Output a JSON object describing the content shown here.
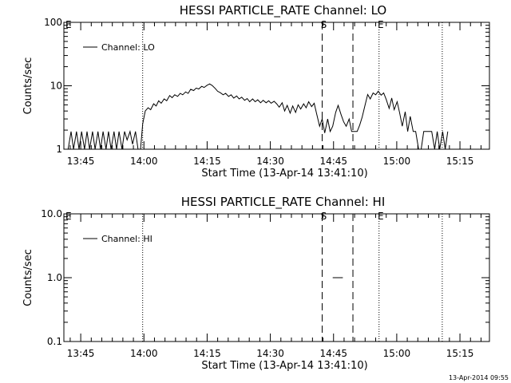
{
  "chart_data": [
    {
      "type": "line",
      "title": "HESSI PARTICLE_RATE Channel: LO",
      "xlabel": "Start Time (13-Apr-14 13:41:10)",
      "ylabel": "Counts/sec",
      "yscale": "log",
      "ylim": [
        1,
        100
      ],
      "xlim_minutes": [
        0,
        101
      ],
      "x_tick_minutes": [
        4,
        19,
        34,
        49,
        64,
        79,
        94
      ],
      "x_tick_labels": [
        "13:45",
        "14:00",
        "14:15",
        "14:30",
        "14:45",
        "15:00",
        "15:15"
      ],
      "y_ticks": [
        1,
        10,
        100
      ],
      "y_tick_labels": [
        "1",
        "10",
        "100"
      ],
      "legend": [
        "Channel: LO"
      ],
      "markers": [
        {
          "label": "E",
          "minute": 0,
          "style": "none"
        },
        {
          "label": "",
          "minute": 18.7,
          "style": "dotted"
        },
        {
          "label": "S",
          "minute": 61.3,
          "style": "dashed"
        },
        {
          "label": "",
          "minute": 68.6,
          "style": "dashed"
        },
        {
          "label": "E",
          "minute": 74.8,
          "style": "dotted"
        },
        {
          "label": "",
          "minute": 89.8,
          "style": "dotted"
        }
      ],
      "series": [
        {
          "name": "Channel: LO",
          "points": [
            [
              1,
              1
            ],
            [
              1.7,
              1.9
            ],
            [
              2.3,
              1
            ],
            [
              3,
              1.9
            ],
            [
              3.6,
              1
            ],
            [
              4.2,
              1.9
            ],
            [
              4.9,
              1
            ],
            [
              5.5,
              1.9
            ],
            [
              6.1,
              1
            ],
            [
              6.8,
              1.9
            ],
            [
              7.4,
              1
            ],
            [
              8.1,
              1.9
            ],
            [
              8.7,
              1
            ],
            [
              9.3,
              1.9
            ],
            [
              10,
              1
            ],
            [
              10.6,
              1.9
            ],
            [
              11.2,
              1
            ],
            [
              11.9,
              1.9
            ],
            [
              12.5,
              1
            ],
            [
              13.1,
              1.9
            ],
            [
              13.8,
              1
            ],
            [
              14.4,
              1.9
            ],
            [
              15,
              1.4
            ],
            [
              15.7,
              1.9
            ],
            [
              16.3,
              1.2
            ],
            [
              17,
              1.9
            ],
            [
              17.6,
              1
            ],
            [
              18.2,
              1
            ],
            [
              18.7,
              2.5
            ],
            [
              19.3,
              4
            ],
            [
              20,
              4.5
            ],
            [
              20.6,
              4.2
            ],
            [
              21.3,
              5.2
            ],
            [
              21.9,
              4.8
            ],
            [
              22.5,
              5.8
            ],
            [
              23.1,
              5.3
            ],
            [
              23.8,
              6.2
            ],
            [
              24.4,
              5.8
            ],
            [
              25.1,
              7
            ],
            [
              25.7,
              6.5
            ],
            [
              26.3,
              7.2
            ],
            [
              27,
              6.8
            ],
            [
              27.6,
              7.6
            ],
            [
              28.2,
              7.2
            ],
            [
              28.9,
              8
            ],
            [
              29.5,
              7.6
            ],
            [
              30.1,
              8.8
            ],
            [
              30.8,
              8.4
            ],
            [
              31.4,
              9.2
            ],
            [
              32,
              8.9
            ],
            [
              32.7,
              9.8
            ],
            [
              33.3,
              9.4
            ],
            [
              34,
              10.2
            ],
            [
              34.6,
              10.7
            ],
            [
              35.2,
              10.1
            ],
            [
              35.9,
              9.1
            ],
            [
              36.5,
              8.2
            ],
            [
              37.1,
              7.8
            ],
            [
              37.8,
              7.2
            ],
            [
              38.4,
              7.6
            ],
            [
              39.1,
              6.8
            ],
            [
              39.7,
              7.2
            ],
            [
              40.3,
              6.4
            ],
            [
              41,
              6.9
            ],
            [
              41.6,
              6.2
            ],
            [
              42.2,
              6.6
            ],
            [
              42.9,
              5.9
            ],
            [
              43.5,
              6.3
            ],
            [
              44.1,
              5.6
            ],
            [
              44.8,
              6.2
            ],
            [
              45.4,
              5.6
            ],
            [
              46,
              6
            ],
            [
              46.7,
              5.4
            ],
            [
              47.3,
              5.9
            ],
            [
              48,
              5.4
            ],
            [
              48.6,
              5.8
            ],
            [
              49.2,
              5.3
            ],
            [
              49.9,
              5.7
            ],
            [
              50.5,
              5.2
            ],
            [
              51.1,
              4.6
            ],
            [
              51.8,
              5.4
            ],
            [
              52.4,
              4
            ],
            [
              53,
              4.9
            ],
            [
              53.7,
              3.7
            ],
            [
              54.3,
              4.8
            ],
            [
              55,
              3.8
            ],
            [
              55.6,
              5
            ],
            [
              56.2,
              4.3
            ],
            [
              56.9,
              5.2
            ],
            [
              57.5,
              4.5
            ],
            [
              58.1,
              5.6
            ],
            [
              58.8,
              4.7
            ],
            [
              59.4,
              5.3
            ],
            [
              60,
              3.6
            ],
            [
              60.7,
              2.3
            ],
            [
              61.3,
              3
            ],
            [
              61.9,
              1.8
            ],
            [
              62.6,
              3
            ],
            [
              63.2,
              1.9
            ],
            [
              63.8,
              2.3
            ],
            [
              64.5,
              3.8
            ],
            [
              65.1,
              4.9
            ],
            [
              65.8,
              3.5
            ],
            [
              66.4,
              2.7
            ],
            [
              67,
              2.3
            ],
            [
              67.7,
              3
            ],
            [
              68.3,
              1.9
            ],
            [
              68.9,
              1.9
            ],
            [
              69.6,
              1.9
            ],
            [
              70.2,
              2.4
            ],
            [
              70.8,
              3.2
            ],
            [
              71.5,
              5
            ],
            [
              72.1,
              7.3
            ],
            [
              72.7,
              6.2
            ],
            [
              73.4,
              7.7
            ],
            [
              74,
              7.2
            ],
            [
              74.6,
              8.2
            ],
            [
              75.3,
              7.1
            ],
            [
              75.9,
              7.7
            ],
            [
              76.5,
              6.1
            ],
            [
              77.2,
              4.4
            ],
            [
              77.8,
              6.4
            ],
            [
              78.4,
              4.2
            ],
            [
              79.1,
              5.6
            ],
            [
              79.7,
              3.7
            ],
            [
              80.3,
              2.3
            ],
            [
              81,
              3.9
            ],
            [
              81.6,
              1.9
            ],
            [
              82.2,
              3.3
            ],
            [
              82.9,
              1.9
            ],
            [
              83.5,
              1.9
            ],
            [
              84.2,
              1
            ],
            [
              84.8,
              1
            ],
            [
              85.4,
              1.9
            ],
            [
              86.1,
              1.9
            ],
            [
              86.7,
              1.9
            ],
            [
              87.3,
              1.9
            ],
            [
              88,
              1
            ],
            [
              88.6,
              1.9
            ],
            [
              89.2,
              1
            ],
            [
              89.9,
              1.9
            ],
            [
              90.5,
              1
            ],
            [
              91.1,
              1.9
            ]
          ]
        }
      ]
    },
    {
      "type": "line",
      "title": "HESSI PARTICLE_RATE Channel: HI",
      "xlabel": "Start Time (13-Apr-14 13:41:10)",
      "ylabel": "Counts/sec",
      "yscale": "log",
      "ylim": [
        0.1,
        10
      ],
      "xlim_minutes": [
        0,
        101
      ],
      "x_tick_minutes": [
        4,
        19,
        34,
        49,
        64,
        79,
        94
      ],
      "x_tick_labels": [
        "13:45",
        "14:00",
        "14:15",
        "14:30",
        "14:45",
        "15:00",
        "15:15"
      ],
      "y_ticks": [
        0.1,
        1,
        10
      ],
      "y_tick_labels": [
        "0.1",
        "1.0",
        "10.0"
      ],
      "legend": [
        "Channel: HI"
      ],
      "markers": [
        {
          "label": "E",
          "minute": 0,
          "style": "none"
        },
        {
          "label": "",
          "minute": 18.7,
          "style": "dotted"
        },
        {
          "label": "S",
          "minute": 61.3,
          "style": "dashed"
        },
        {
          "label": "",
          "minute": 68.6,
          "style": "dashed"
        },
        {
          "label": "E",
          "minute": 74.8,
          "style": "dotted"
        },
        {
          "label": "",
          "minute": 89.8,
          "style": "dotted"
        }
      ],
      "series": [
        {
          "name": "Channel: HI",
          "points": [
            [
              63.8,
              1
            ],
            [
              66.2,
              1
            ]
          ]
        }
      ]
    }
  ],
  "footer": {
    "timestamp": "13-Apr-2014 09:55"
  }
}
